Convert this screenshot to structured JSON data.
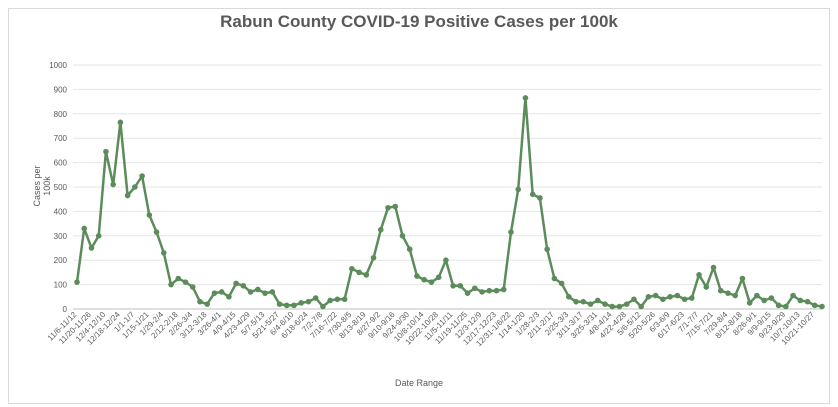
{
  "chart_data": {
    "type": "line",
    "title": "Rabun County COVID-19 Positive Cases per 100k",
    "xlabel": "Date Range",
    "ylabel": "Cases per 100k",
    "ylim": [
      0,
      1000
    ],
    "yticks": [
      0,
      100,
      200,
      300,
      400,
      500,
      600,
      700,
      800,
      900,
      1000
    ],
    "grid": true,
    "legend": "none",
    "line_color": "#5b8c5a",
    "x_tick_labels": [
      "11/6-11/12",
      "11/20-11/26",
      "12/4-12/10",
      "12/18-12/24",
      "1/1-1/7",
      "1/15-1/21",
      "1/29-2/4",
      "2/12-2/18",
      "2/26-3/4",
      "3/12-3/18",
      "3/26-4/1",
      "4/9-4/15",
      "4/23-4/29",
      "5/7-5/13",
      "5/21-5/27",
      "6/4-6/10",
      "6/18-6/24",
      "7/2-7/8",
      "7/16-7/22",
      "7/30-8/5",
      "8/13-8/19",
      "8/27-9/2",
      "9/10-9/16",
      "9/24-9/30",
      "10/8-10/14",
      "10/22-10/28",
      "11/5-11/11",
      "11/19-11/25",
      "12/3-12/9",
      "12/17-12/23",
      "12/31-1/6/22",
      "1/14-1/20",
      "1/28-2/3",
      "2/11-2/17",
      "2/25-3/3",
      "3/11-3/17",
      "3/25-3/31",
      "4/8-4/14",
      "4/22-4/28",
      "5/6-5/12",
      "5/20-5/26",
      "6/3-6/9",
      "6/17-6/23",
      "7/1-7/7",
      "7/15-7/21",
      "7/29-8/4",
      "8/12-8/18",
      "8/26-9/1",
      "9/9-9/15",
      "9/23-9/29",
      "10/7-10/13",
      "10/21-10/27"
    ],
    "values": [
      110,
      330,
      250,
      300,
      645,
      510,
      765,
      465,
      500,
      545,
      385,
      315,
      230,
      100,
      125,
      110,
      90,
      30,
      20,
      65,
      70,
      50,
      105,
      95,
      70,
      80,
      65,
      70,
      20,
      15,
      15,
      25,
      30,
      45,
      10,
      35,
      40,
      40,
      165,
      150,
      140,
      210,
      325,
      415,
      420,
      300,
      245,
      135,
      120,
      110,
      130,
      200,
      95,
      95,
      65,
      85,
      70,
      75,
      75,
      80,
      315,
      490,
      865,
      470,
      455,
      245,
      125,
      105,
      50,
      30,
      30,
      20,
      35,
      20,
      10,
      10,
      20,
      40,
      10,
      50,
      55,
      40,
      50,
      55,
      40,
      45,
      140,
      90,
      170,
      75,
      65,
      55,
      125,
      25,
      55,
      35,
      45,
      15,
      10,
      55,
      35,
      30,
      15,
      10
    ]
  }
}
